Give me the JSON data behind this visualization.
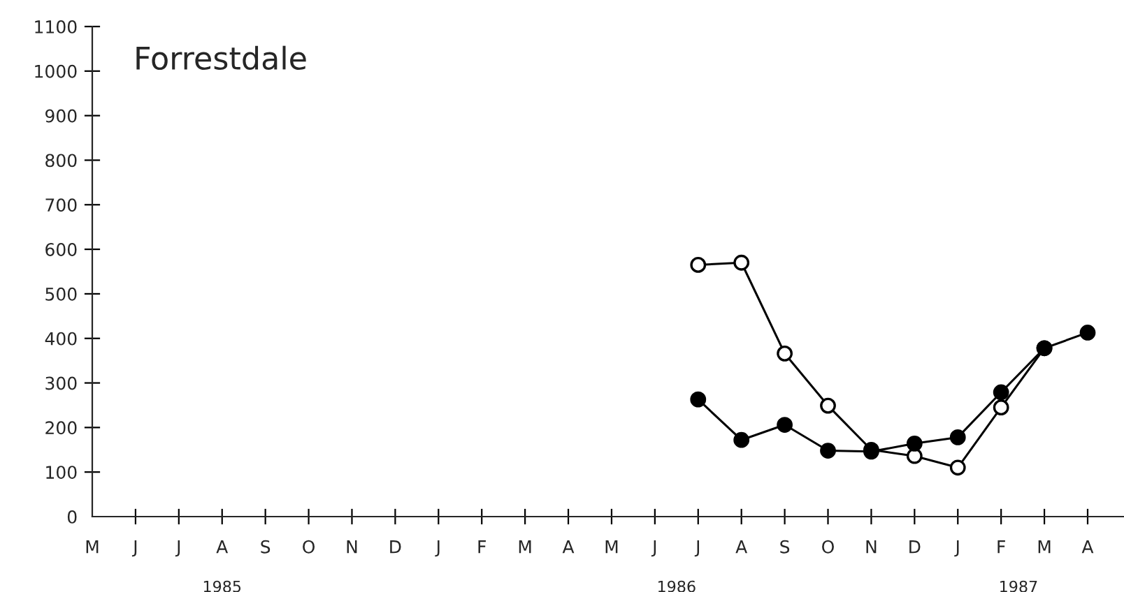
{
  "chart_data": {
    "type": "line",
    "title": "Forrestdale",
    "categories": [
      "M",
      "J",
      "J",
      "A",
      "S",
      "O",
      "N",
      "D",
      "J",
      "F",
      "M",
      "A",
      "M",
      "J",
      "J",
      "A",
      "S",
      "O",
      "N",
      "D",
      "J",
      "F",
      "M",
      "A"
    ],
    "series": [
      {
        "color": "#ffffff",
        "values": [
          null,
          null,
          null,
          null,
          null,
          null,
          null,
          null,
          null,
          null,
          null,
          null,
          null,
          null,
          565,
          570,
          366,
          249,
          150,
          136,
          110,
          245,
          378,
          null
        ]
      },
      {
        "color": "#000000",
        "values": [
          null,
          null,
          null,
          null,
          null,
          null,
          null,
          null,
          null,
          null,
          null,
          null,
          null,
          null,
          263,
          172,
          206,
          148,
          146,
          164,
          178,
          279,
          378,
          413
        ]
      }
    ],
    "ylim": [
      0,
      1100
    ],
    "yticks": [
      0,
      100,
      200,
      300,
      400,
      500,
      600,
      700,
      800,
      900,
      1000,
      1100
    ],
    "annotations": [
      "1985",
      "1986",
      "1987"
    ],
    "marker": "circle",
    "line_style": "solid",
    "grid": false,
    "legend": false
  }
}
